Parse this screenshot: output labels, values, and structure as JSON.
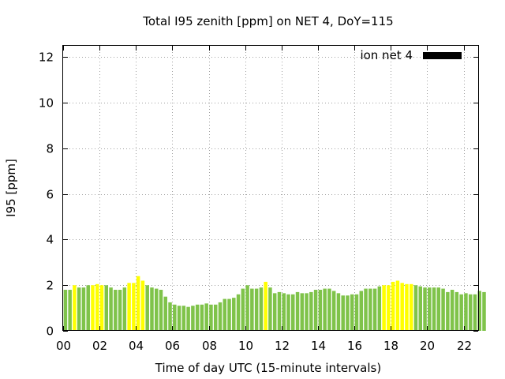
{
  "chart_data": {
    "type": "bar",
    "title": "Total I95 zenith [ppm] on NET 4, DoY=115",
    "xlabel": "Time of day UTC (15-minute intervals)",
    "ylabel": "I95 [ppm]",
    "ylim": [
      0,
      12.5
    ],
    "yticks": [
      0,
      2,
      4,
      6,
      8,
      10,
      12
    ],
    "xlim": [
      0,
      22.8
    ],
    "xticks": [
      0,
      2,
      4,
      6,
      8,
      10,
      12,
      14,
      16,
      18,
      20,
      22
    ],
    "xtick_labels": [
      "00",
      "02",
      "04",
      "06",
      "08",
      "10",
      "12",
      "14",
      "16",
      "18",
      "20",
      "22"
    ],
    "grid": true,
    "interval_hours": 0.25,
    "legend": {
      "label": "ion net 4",
      "position": "top-right",
      "color": "#000000"
    },
    "colors": {
      "normal": "#7fc34a",
      "highlight": "#ffff00"
    },
    "series": [
      {
        "name": "ion net 4",
        "values": [
          1.8,
          1.8,
          2.0,
          1.9,
          1.9,
          2.0,
          2.0,
          2.05,
          2.0,
          2.0,
          1.9,
          1.8,
          1.8,
          1.9,
          2.1,
          2.1,
          2.4,
          2.2,
          2.0,
          1.9,
          1.85,
          1.8,
          1.5,
          1.25,
          1.15,
          1.1,
          1.1,
          1.05,
          1.1,
          1.15,
          1.15,
          1.2,
          1.15,
          1.15,
          1.25,
          1.4,
          1.4,
          1.45,
          1.6,
          1.85,
          2.0,
          1.85,
          1.85,
          1.9,
          2.15,
          1.9,
          1.65,
          1.7,
          1.65,
          1.6,
          1.6,
          1.7,
          1.65,
          1.65,
          1.7,
          1.8,
          1.8,
          1.85,
          1.85,
          1.75,
          1.65,
          1.55,
          1.55,
          1.6,
          1.6,
          1.75,
          1.85,
          1.85,
          1.85,
          1.95,
          2.0,
          2.0,
          2.15,
          2.2,
          2.1,
          2.05,
          2.05,
          2.0,
          1.95,
          1.9,
          1.9,
          1.9,
          1.9,
          1.85,
          1.7,
          1.8,
          1.7,
          1.6,
          1.65,
          1.6,
          1.6,
          1.75,
          1.7
        ],
        "highlight": [
          false,
          false,
          true,
          false,
          false,
          false,
          true,
          true,
          true,
          false,
          false,
          false,
          false,
          false,
          true,
          true,
          true,
          true,
          false,
          false,
          false,
          false,
          false,
          false,
          false,
          false,
          false,
          false,
          false,
          false,
          false,
          false,
          false,
          false,
          false,
          false,
          false,
          false,
          false,
          false,
          false,
          false,
          false,
          false,
          true,
          false,
          false,
          false,
          false,
          false,
          false,
          false,
          false,
          false,
          false,
          false,
          false,
          false,
          false,
          false,
          false,
          false,
          false,
          false,
          false,
          false,
          false,
          false,
          false,
          false,
          true,
          true,
          true,
          true,
          true,
          true,
          true,
          false,
          false,
          false,
          false,
          false,
          false,
          false,
          false,
          false,
          false,
          false,
          false,
          false,
          false,
          false,
          false
        ]
      }
    ]
  }
}
